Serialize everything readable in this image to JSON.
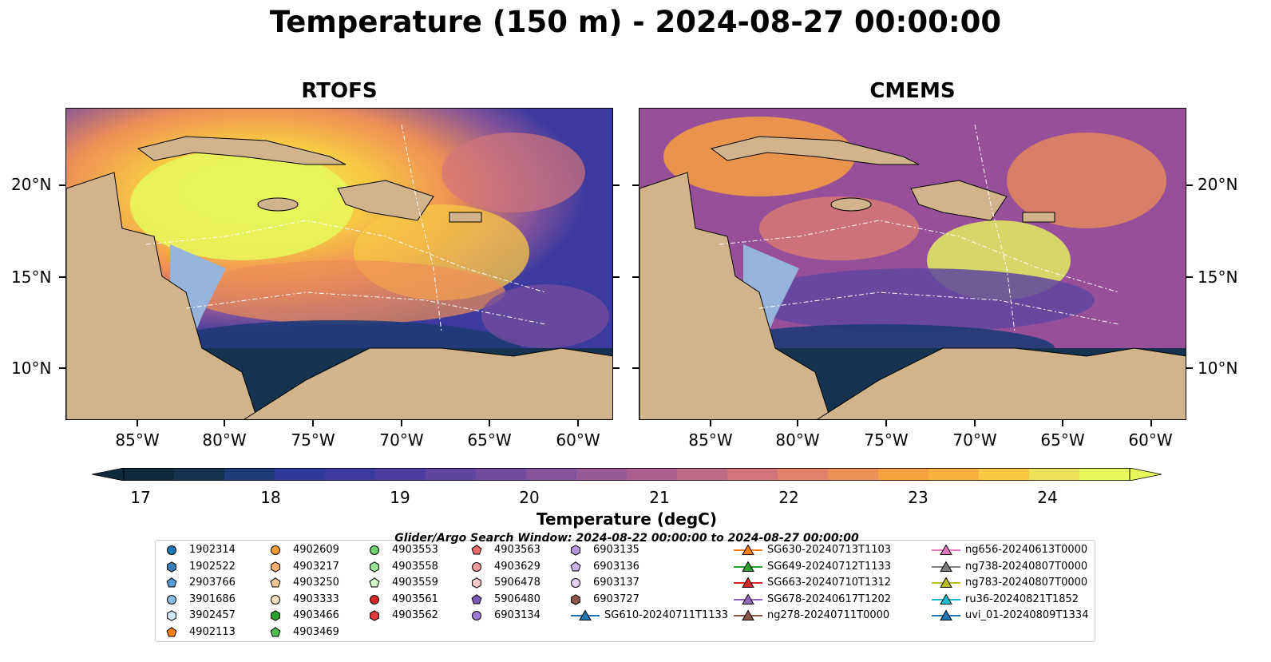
{
  "title": "Temperature (150 m) - 2024-08-27 00:00:00",
  "panels": [
    {
      "title": "RTOFS"
    },
    {
      "title": "CMEMS"
    }
  ],
  "latitude_labels": [
    "20°N",
    "15°N",
    "10°N"
  ],
  "longitude_labels": [
    "85°W",
    "80°W",
    "75°W",
    "70°W",
    "65°W",
    "60°W"
  ],
  "colorbar": {
    "label": "Temperature (degC)",
    "ticks": [
      "17",
      "18",
      "19",
      "20",
      "21",
      "22",
      "23",
      "24"
    ],
    "range": [
      16.5,
      24.5
    ],
    "colors": [
      "#0f2a3c",
      "#15334e",
      "#1f3a78",
      "#2f3a96",
      "#3c3a9e",
      "#4c3ea0",
      "#5f45a0",
      "#714c9e",
      "#84539a",
      "#985a96",
      "#ab6190",
      "#bf6a86",
      "#d2757a",
      "#e2816a",
      "#ee8f56",
      "#f6a040",
      "#f9b23e",
      "#f8c844",
      "#ede25a",
      "#e6f85c"
    ]
  },
  "search_window": "Glider/Argo Search Window: 2024-08-22 00:00:00 to 2024-08-27 00:00:00",
  "legend": {
    "col1": [
      "1902314",
      "1902522",
      "2903766",
      "3901686",
      "3902457",
      "4902113"
    ],
    "col2": [
      "4902609",
      "4903217",
      "4903250",
      "4903333",
      "4903466",
      "4903469"
    ],
    "col3": [
      "4903553",
      "4903558",
      "4903559",
      "4903561",
      "4903562"
    ],
    "col4": [
      "4903563",
      "4903629",
      "5906478",
      "5906480",
      "6903134"
    ],
    "col5": [
      "6903135",
      "6903136",
      "6903137",
      "6903727",
      "SG610-20240711T1133"
    ],
    "col6": [
      "SG630-20240713T1103",
      "SG649-20240712T1133",
      "SG663-20240710T1312",
      "SG678-20240617T1202",
      "ng278-20240711T0000"
    ],
    "col7": [
      "ng656-20240613T0000",
      "ng738-20240807T0000",
      "ng783-20240807T0000",
      "ru36-20240821T1852",
      "uvi_01-20240809T1334"
    ]
  },
  "marker_colors": {
    "1902314": "#1f77b4",
    "1902522": "#3b7fb5",
    "2903766": "#5a9bd4",
    "3901686": "#89bde6",
    "3902457": "#cfe8fb",
    "4902113": "#ff7f0e",
    "4902609": "#ff9a3c",
    "4903217": "#ffb070",
    "4903250": "#ffc896",
    "4903333": "#ffe0c0",
    "4903466": "#2ca02c",
    "4903469": "#4cbf4c",
    "4903553": "#6fd06f",
    "4903558": "#9be39b",
    "4903559": "#d4f5c8",
    "4903561": "#d62728",
    "4903562": "#e03c3c",
    "4903563": "#ec6b6b",
    "4903629": "#f49a9a",
    "5906478": "#fbc8c8",
    "5906480": "#7b5bb5",
    "6903134": "#9f7ad0",
    "6903135": "#b595e0",
    "6903136": "#cdb3ec",
    "6903137": "#e3d2f6",
    "6903727": "#8c564b",
    "SG610-20240711T1133": "#1f77b4",
    "SG630-20240713T1103": "#ff7f0e",
    "SG649-20240712T1133": "#2ca02c",
    "SG663-20240710T1312": "#d62728",
    "SG678-20240617T1202": "#9467bd",
    "ng278-20240711T0000": "#8c564b",
    "ng656-20240613T0000": "#e377c2",
    "ng738-20240807T0000": "#7f7f7f",
    "ng783-20240807T0000": "#bcbd22",
    "ru36-20240821T1852": "#17becf",
    "uvi_01-20240809T1334": "#1f77b4"
  },
  "marker_shapes": {
    "col1": [
      "circle",
      "hexagon",
      "pentagon",
      "circle",
      "hexagon",
      "pentagon"
    ],
    "col2": [
      "circle",
      "hexagon",
      "pentagon",
      "circle",
      "hexagon",
      "pentagon"
    ],
    "col3": [
      "circle",
      "hexagon",
      "pentagon",
      "circle",
      "hexagon"
    ],
    "col4": [
      "pentagon",
      "circle",
      "hexagon",
      "pentagon",
      "circle"
    ],
    "col5": [
      "hexagon",
      "pentagon",
      "circle",
      "hexagon",
      "triangle"
    ],
    "col6": [
      "triangle",
      "triangle",
      "triangle",
      "triangle",
      "triangle"
    ],
    "col7": [
      "triangle",
      "triangle",
      "triangle",
      "triangle",
      "triangle"
    ]
  }
}
